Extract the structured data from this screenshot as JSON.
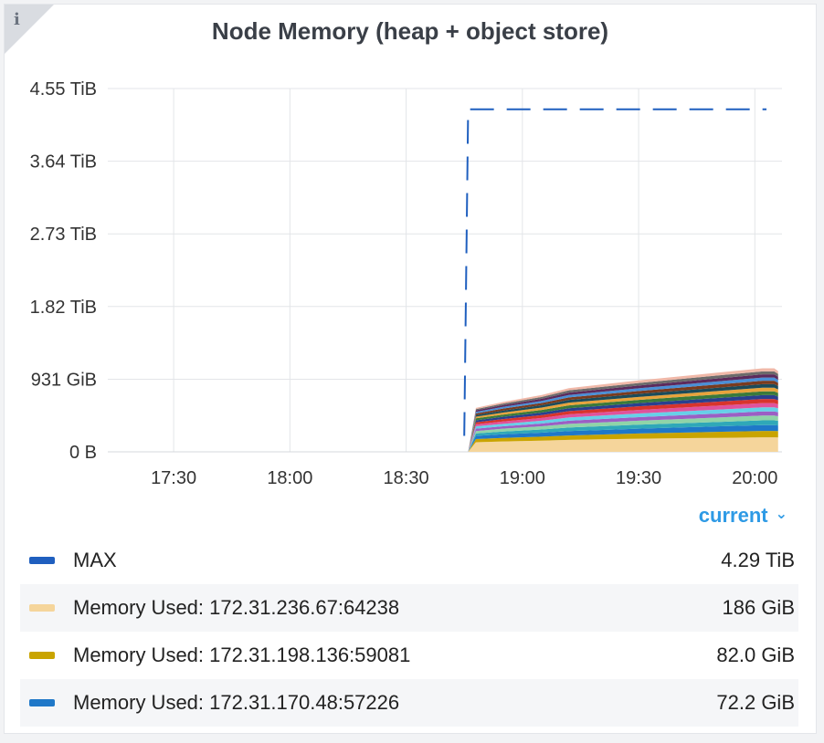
{
  "panel": {
    "title": "Node Memory (heap + object store)",
    "info_icon": "i"
  },
  "legend_toggle": {
    "label": "current",
    "icon": "chevron-down-icon"
  },
  "legend": [
    {
      "label": "MAX",
      "value": "4.29 TiB",
      "color": "#1f5fbf"
    },
    {
      "label": "Memory Used: 172.31.236.67:64238",
      "value": "186 GiB",
      "color": "#f5d59b"
    },
    {
      "label": "Memory Used: 172.31.198.136:59081",
      "value": "82.0 GiB",
      "color": "#c9a400"
    },
    {
      "label": "Memory Used: 172.31.170.48:57226",
      "value": "72.2 GiB",
      "color": "#1f78c8"
    }
  ],
  "chart_data": {
    "type": "area",
    "title": "Node Memory (heap + object store)",
    "y_ticks": [
      "0 B",
      "931 GiB",
      "1.82 TiB",
      "2.73 TiB",
      "3.64 TiB",
      "4.55 TiB"
    ],
    "y_tick_values_tib": [
      0,
      0.909,
      1.82,
      2.73,
      3.64,
      4.55
    ],
    "ylim_tib": [
      0,
      4.55
    ],
    "x_ticks": [
      "17:30",
      "18:00",
      "18:30",
      "19:00",
      "19:30",
      "20:00"
    ],
    "xlim": [
      "17:13",
      "20:07"
    ],
    "grid": true,
    "max_line": {
      "name": "MAX",
      "style": "dashed",
      "color": "#1f5fbf",
      "points": [
        [
          "18:45",
          0.2
        ],
        [
          "18:46",
          4.29
        ],
        [
          "20:03",
          4.29
        ]
      ]
    },
    "stack": {
      "times": [
        "18:46",
        "18:48",
        "18:55",
        "19:05",
        "19:12",
        "19:30",
        "19:50",
        "20:02",
        "20:05",
        "20:06"
      ],
      "series": [
        {
          "values": [
            0.0,
            0.12,
            0.13,
            0.14,
            0.15,
            0.165,
            0.175,
            0.182,
            0.182,
            0.18
          ],
          "color": "#f5d59b"
        },
        {
          "values": [
            0.0,
            0.04,
            0.045,
            0.05,
            0.055,
            0.065,
            0.075,
            0.08,
            0.08,
            0.08
          ],
          "color": "#c9a400"
        },
        {
          "values": [
            0.0,
            0.04,
            0.045,
            0.05,
            0.055,
            0.06,
            0.068,
            0.072,
            0.072,
            0.07
          ],
          "color": "#1f78c8"
        },
        {
          "values": [
            0.0,
            0.03,
            0.035,
            0.04,
            0.045,
            0.05,
            0.055,
            0.06,
            0.06,
            0.058
          ],
          "color": "#2fa8b8"
        },
        {
          "values": [
            0.0,
            0.03,
            0.035,
            0.04,
            0.045,
            0.05,
            0.055,
            0.06,
            0.06,
            0.058
          ],
          "color": "#8fd4a8"
        },
        {
          "values": [
            0.0,
            0.03,
            0.03,
            0.035,
            0.04,
            0.045,
            0.05,
            0.052,
            0.052,
            0.05
          ],
          "color": "#9b5fc4"
        },
        {
          "values": [
            0.0,
            0.03,
            0.03,
            0.035,
            0.04,
            0.045,
            0.05,
            0.052,
            0.052,
            0.05
          ],
          "color": "#66d0e8"
        },
        {
          "values": [
            0.0,
            0.025,
            0.03,
            0.035,
            0.04,
            0.045,
            0.05,
            0.052,
            0.052,
            0.05
          ],
          "color": "#e0529c"
        },
        {
          "values": [
            0.0,
            0.025,
            0.03,
            0.035,
            0.04,
            0.045,
            0.05,
            0.052,
            0.052,
            0.05
          ],
          "color": "#d8342c"
        },
        {
          "values": [
            0.0,
            0.025,
            0.028,
            0.032,
            0.036,
            0.04,
            0.045,
            0.048,
            0.048,
            0.046
          ],
          "color": "#2a3f8f"
        },
        {
          "values": [
            0.0,
            0.025,
            0.028,
            0.032,
            0.036,
            0.04,
            0.045,
            0.048,
            0.048,
            0.046
          ],
          "color": "#3b7a3b"
        },
        {
          "values": [
            0.0,
            0.02,
            0.025,
            0.03,
            0.034,
            0.038,
            0.042,
            0.045,
            0.045,
            0.043
          ],
          "color": "#e8a33c"
        },
        {
          "values": [
            0.0,
            0.02,
            0.025,
            0.03,
            0.034,
            0.038,
            0.042,
            0.045,
            0.045,
            0.043
          ],
          "color": "#1b4b5a"
        },
        {
          "values": [
            0.0,
            0.02,
            0.025,
            0.028,
            0.032,
            0.036,
            0.04,
            0.042,
            0.042,
            0.04
          ],
          "color": "#7a3b1e"
        },
        {
          "values": [
            0.0,
            0.02,
            0.022,
            0.026,
            0.03,
            0.034,
            0.038,
            0.04,
            0.04,
            0.038
          ],
          "color": "#4a8fd6"
        },
        {
          "values": [
            0.0,
            0.02,
            0.022,
            0.026,
            0.03,
            0.034,
            0.038,
            0.04,
            0.04,
            0.038
          ],
          "color": "#5c2a5c"
        },
        {
          "values": [
            0.0,
            0.015,
            0.02,
            0.024,
            0.028,
            0.032,
            0.036,
            0.038,
            0.038,
            0.036
          ],
          "color": "#6b6b6b"
        },
        {
          "values": [
            0.0,
            0.015,
            0.02,
            0.024,
            0.028,
            0.032,
            0.036,
            0.038,
            0.038,
            0.036
          ],
          "color": "#f0b8a8"
        }
      ]
    }
  }
}
